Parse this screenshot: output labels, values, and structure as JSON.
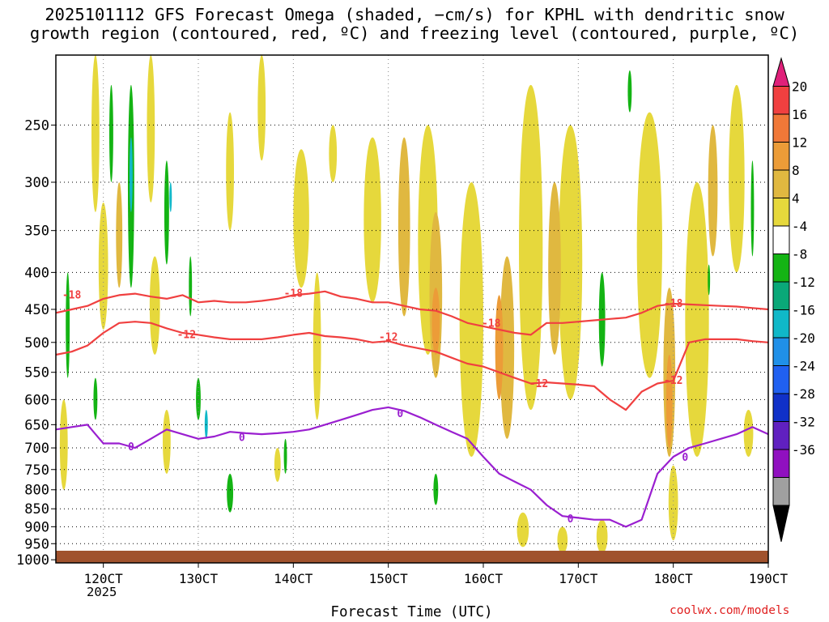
{
  "title": {
    "line1": "2025101112 GFS Forecast Omega (shaded, −cm/s) for KPHL with dendritic snow",
    "line2": "growth region (contoured, red, ºC) and freezing level (contoured, purple, ºC)"
  },
  "credit": "coolwx.com/models",
  "chart_data": {
    "type": "heatmap",
    "xlabel": "Forecast Time (UTC)",
    "x_ticks": [
      "120CT",
      "130CT",
      "140CT",
      "150CT",
      "160CT",
      "170CT",
      "180CT",
      "190CT"
    ],
    "x_tick_hours": [
      12,
      36,
      60,
      84,
      108,
      132,
      156,
      180
    ],
    "x_secondary_label": "2025",
    "x_range_hours": [
      0,
      180
    ],
    "y_ticks": [
      250,
      300,
      350,
      400,
      450,
      500,
      550,
      600,
      650,
      700,
      750,
      800,
      850,
      900,
      950,
      1000
    ],
    "y_range_hPa": [
      200,
      1010
    ],
    "y_scale": "log-pressure (inverted)",
    "grid": true,
    "colorbar": {
      "labels": [
        20,
        16,
        12,
        8,
        4,
        -4,
        -8,
        -12,
        -16,
        -20,
        -24,
        -28,
        -32,
        -36
      ],
      "colors": [
        "#e0207a",
        "#f04040",
        "#f07838",
        "#ec9c38",
        "#e0b840",
        "#e6d83c",
        "#ffffff",
        "#14b414",
        "#0aa878",
        "#10b8c8",
        "#2090e8",
        "#2060f0",
        "#1030c8",
        "#6020c0",
        "#9010c0",
        "#a0a0a0",
        "#000000"
      ]
    },
    "series": [
      {
        "name": "-18",
        "color": "#f04040",
        "label_points": [
          [
            4,
            430
          ],
          [
            60,
            428
          ],
          [
            110,
            471
          ],
          [
            156,
            442
          ]
        ],
        "x": [
          0,
          4,
          8,
          12,
          16,
          20,
          24,
          28,
          32,
          36,
          40,
          44,
          48,
          52,
          56,
          60,
          64,
          68,
          72,
          76,
          80,
          84,
          88,
          92,
          96,
          100,
          104,
          108,
          112,
          116,
          120,
          124,
          128,
          132,
          136,
          140,
          144,
          148,
          152,
          156,
          160,
          164,
          168,
          172,
          176,
          180
        ],
        "y": [
          455,
          450,
          445,
          435,
          430,
          428,
          432,
          435,
          430,
          440,
          438,
          440,
          440,
          438,
          435,
          430,
          428,
          425,
          432,
          435,
          440,
          440,
          445,
          450,
          452,
          460,
          470,
          475,
          480,
          485,
          488,
          470,
          470,
          468,
          466,
          464,
          462,
          455,
          445,
          442,
          443,
          444,
          445,
          446,
          448,
          450
        ]
      },
      {
        "name": "-12",
        "color": "#f04040",
        "label_points": [
          [
            33,
            488
          ],
          [
            84,
            492
          ],
          [
            122,
            571
          ],
          [
            156,
            565
          ]
        ],
        "x": [
          0,
          4,
          8,
          12,
          16,
          20,
          24,
          28,
          32,
          36,
          40,
          44,
          48,
          52,
          56,
          60,
          64,
          68,
          72,
          76,
          80,
          84,
          88,
          92,
          96,
          100,
          104,
          108,
          112,
          116,
          120,
          124,
          128,
          132,
          136,
          140,
          144,
          148,
          152,
          156,
          160,
          164,
          168,
          172,
          176,
          180
        ],
        "y": [
          520,
          515,
          505,
          485,
          470,
          468,
          470,
          478,
          485,
          488,
          492,
          495,
          495,
          495,
          492,
          488,
          485,
          490,
          492,
          495,
          500,
          498,
          505,
          510,
          515,
          525,
          535,
          540,
          550,
          560,
          570,
          568,
          570,
          572,
          575,
          600,
          620,
          585,
          570,
          565,
          500,
          495,
          495,
          495,
          498,
          500
        ]
      },
      {
        "name": "0",
        "color": "#9a1fd0",
        "label_points": [
          [
            19,
            698
          ],
          [
            47,
            678
          ],
          [
            87,
            628
          ],
          [
            130,
            879
          ],
          [
            159,
            722
          ]
        ],
        "x": [
          0,
          4,
          8,
          10,
          12,
          16,
          20,
          24,
          28,
          32,
          36,
          40,
          44,
          48,
          52,
          56,
          60,
          64,
          68,
          72,
          76,
          80,
          84,
          88,
          92,
          96,
          100,
          104,
          108,
          112,
          116,
          120,
          124,
          128,
          132,
          136,
          140,
          144,
          148,
          152,
          156,
          160,
          164,
          168,
          172,
          176,
          180
        ],
        "y": [
          660,
          655,
          650,
          670,
          690,
          690,
          700,
          680,
          660,
          670,
          680,
          675,
          665,
          668,
          670,
          668,
          665,
          660,
          650,
          640,
          630,
          620,
          615,
          622,
          635,
          650,
          665,
          680,
          720,
          760,
          780,
          800,
          840,
          870,
          875,
          880,
          880,
          900,
          880,
          760,
          720,
          700,
          690,
          680,
          670,
          655,
          670
        ]
      }
    ]
  }
}
